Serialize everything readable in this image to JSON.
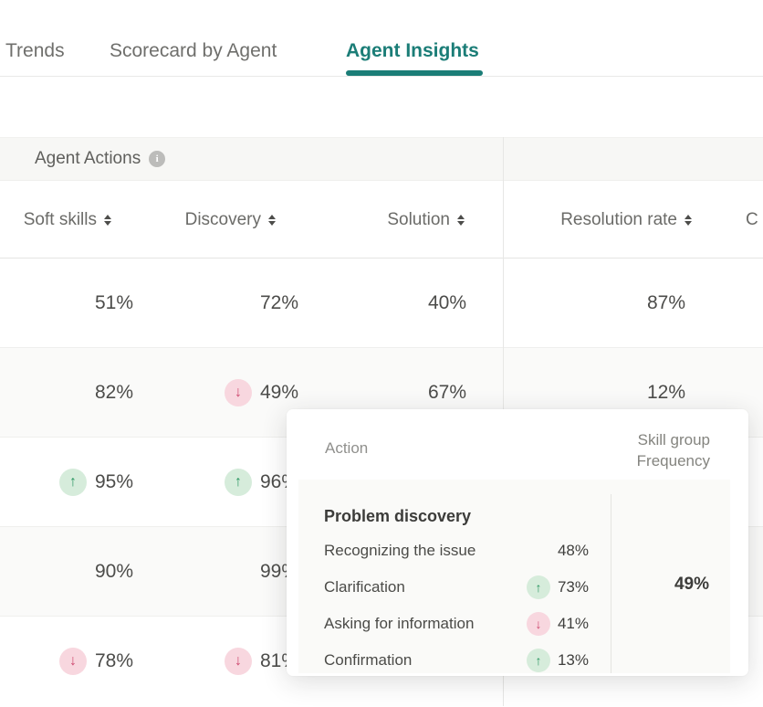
{
  "colors": {
    "accent": "#1b7d77",
    "trend_up": "#2a9660",
    "trend_up_bg": "#d6ecdb",
    "trend_down": "#ce4a70",
    "trend_down_bg": "#f8d7df",
    "info_icon": "#bcbcba"
  },
  "icons": {
    "info": "i",
    "trend_up": "↑",
    "trend_down": "↓"
  },
  "tabs": [
    {
      "label": "Trends",
      "active": false
    },
    {
      "label": "Scorecard by Agent",
      "active": false
    },
    {
      "label": "Agent Insights",
      "active": true
    }
  ],
  "table": {
    "group_header_label": "Agent Actions",
    "columns": [
      {
        "label": "Soft skills"
      },
      {
        "label": "Discovery"
      },
      {
        "label": "Solution"
      },
      {
        "label": "Resolution rate"
      },
      {
        "label": "C"
      }
    ],
    "rows": [
      {
        "cells": [
          {
            "value": "51%"
          },
          {
            "value": "72%"
          },
          {
            "value": "40%"
          },
          {
            "value": "87%"
          },
          {
            "value": ""
          }
        ]
      },
      {
        "cells": [
          {
            "value": "82%"
          },
          {
            "value": "49%",
            "trend": "down"
          },
          {
            "value": "67%"
          },
          {
            "value": "12%"
          },
          {
            "value": ""
          }
        ]
      },
      {
        "cells": [
          {
            "value": "95%",
            "trend": "up"
          },
          {
            "value": "96%",
            "trend": "up"
          },
          {
            "value": ""
          },
          {
            "value": ""
          },
          {
            "value": ""
          }
        ]
      },
      {
        "cells": [
          {
            "value": "90%"
          },
          {
            "value": "99%"
          },
          {
            "value": ""
          },
          {
            "value": ""
          },
          {
            "value": ""
          }
        ]
      },
      {
        "cells": [
          {
            "value": "78%",
            "trend": "down"
          },
          {
            "value": "81%",
            "trend": "down"
          },
          {
            "value": ""
          },
          {
            "value": ""
          },
          {
            "value": ""
          }
        ]
      }
    ]
  },
  "tooltip": {
    "action_header": "Action",
    "skill_group_line1": "Skill group",
    "skill_group_line2": "Frequency",
    "group_title": "Problem discovery",
    "items": [
      {
        "label": "Recognizing the issue",
        "value": "48%",
        "trend": null
      },
      {
        "label": "Clarification",
        "value": "73%",
        "trend": "up"
      },
      {
        "label": "Asking for information",
        "value": "41%",
        "trend": "down"
      },
      {
        "label": "Confirmation",
        "value": "13%",
        "trend": "up"
      }
    ],
    "frequency_value": "49%"
  }
}
